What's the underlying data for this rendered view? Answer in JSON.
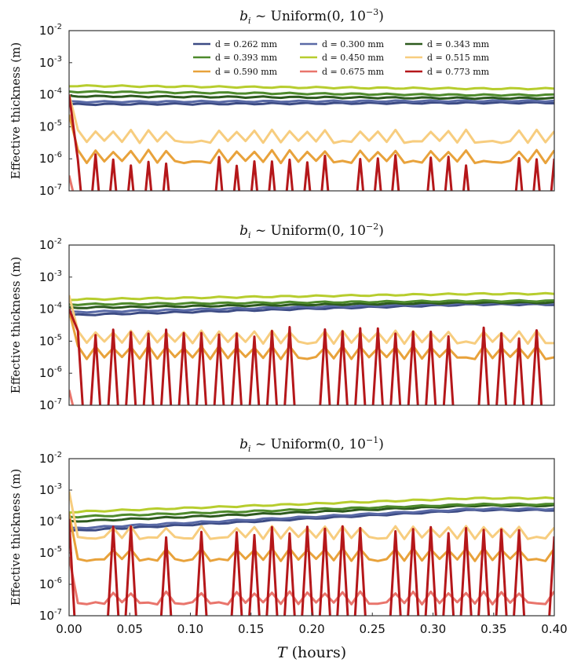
{
  "chart_data": [
    {
      "type": "line",
      "title": "b_i ~ Uniform(0, 10^-3)",
      "title_parts": {
        "var": "b",
        "sub": "i",
        "text": " ~ Uniform(0, 10",
        "exp": "−3",
        "close": ")"
      },
      "ylabel": "Effective thickness (m)",
      "yscale": "log",
      "ylim": [
        1e-07,
        0.01
      ],
      "xlim": [
        0.0,
        0.4
      ],
      "ytick_labels": [
        {
          "base": "10",
          "exp": "-2"
        },
        {
          "base": "10",
          "exp": "-3"
        },
        {
          "base": "10",
          "exp": "-4"
        },
        {
          "base": "10",
          "exp": "-5"
        },
        {
          "base": "10",
          "exp": "-6"
        },
        {
          "base": "10",
          "exp": "-7"
        }
      ],
      "legend_loc": "top-right",
      "series": [
        {
          "name": "d = 0.262 mm",
          "color": "#3c4b84",
          "start": 5e-05,
          "end": 5.6e-05
        },
        {
          "name": "d = 0.300 mm",
          "color": "#5a6aa6",
          "start": 6e-05,
          "end": 6.4e-05
        },
        {
          "name": "d = 0.343 mm",
          "color": "#2d5a1e",
          "start": 9e-05,
          "end": 7.8e-05
        },
        {
          "name": "d = 0.393 mm",
          "color": "#4e8a2c",
          "start": 0.000125,
          "end": 9.8e-05
        },
        {
          "name": "d = 0.450 mm",
          "color": "#b7cd2e",
          "start": 0.00019,
          "end": 0.000155
        },
        {
          "name": "d = 0.515 mm",
          "color": "#f7cd7f",
          "base": 3.4e-06,
          "end": 2.3e-06
        },
        {
          "name": "d = 0.590 mm",
          "color": "#e8a23b",
          "base": 8e-07,
          "end": 7e-07
        },
        {
          "name": "d = 0.675 mm",
          "color": "#e9756c",
          "base": 1e-08,
          "end": 1e-08
        },
        {
          "name": "d = 0.773 mm",
          "color": "#b5171a",
          "start": 0.0001,
          "peak": 1e-06
        }
      ]
    },
    {
      "type": "line",
      "title": "b_i ~ Uniform(0, 10^-2)",
      "title_parts": {
        "var": "b",
        "sub": "i",
        "text": " ~ Uniform(0, 10",
        "exp": "−2",
        "close": ")"
      },
      "ylabel": "Effective thickness (m)",
      "yscale": "log",
      "ylim": [
        1e-07,
        0.01
      ],
      "xlim": [
        0.0,
        0.4
      ],
      "ytick_labels": [
        {
          "base": "10",
          "exp": "-2"
        },
        {
          "base": "10",
          "exp": "-3"
        },
        {
          "base": "10",
          "exp": "-4"
        },
        {
          "base": "10",
          "exp": "-5"
        },
        {
          "base": "10",
          "exp": "-6"
        },
        {
          "base": "10",
          "exp": "-7"
        }
      ],
      "series": [
        {
          "name": "d = 0.262 mm",
          "color": "#3c4b84",
          "start": 6.5e-05,
          "end": 0.00014
        },
        {
          "name": "d = 0.300 mm",
          "color": "#5a6aa6",
          "start": 8e-05,
          "end": 0.00015
        },
        {
          "name": "d = 0.343 mm",
          "color": "#2d5a1e",
          "start": 0.00011,
          "end": 0.00016
        },
        {
          "name": "d = 0.393 mm",
          "color": "#4e8a2c",
          "start": 0.00014,
          "end": 0.00018
        },
        {
          "name": "d = 0.450 mm",
          "color": "#b7cd2e",
          "start": 0.0002,
          "end": 0.0003
        },
        {
          "name": "d = 0.515 mm",
          "color": "#f7cd7f",
          "base": 9e-06,
          "end": 1e-05
        },
        {
          "name": "d = 0.590 mm",
          "color": "#e8a23b",
          "base": 3e-06,
          "end": 2.8e-06
        },
        {
          "name": "d = 0.675 mm",
          "color": "#e9756c",
          "base": 1e-08,
          "end": 1e-08
        },
        {
          "name": "d = 0.773 mm",
          "color": "#b5171a",
          "start": 0.0001,
          "peak": 2e-05
        }
      ]
    },
    {
      "type": "line",
      "title": "b_i ~ Uniform(0, 10^-1)",
      "title_parts": {
        "var": "b",
        "sub": "i",
        "text": " ~ Uniform(0, 10",
        "exp": "−1",
        "close": ")"
      },
      "ylabel": "Effective thickness (m)",
      "xlabel": "T (hours)",
      "xlabel_parts": {
        "var": "T",
        "text": " (hours)"
      },
      "yscale": "log",
      "ylim": [
        1e-07,
        0.01
      ],
      "xlim": [
        0.0,
        0.4
      ],
      "xticks": [
        "0.00",
        "0.05",
        "0.10",
        "0.15",
        "0.20",
        "0.25",
        "0.30",
        "0.35",
        "0.40"
      ],
      "ytick_labels": [
        {
          "base": "10",
          "exp": "-2"
        },
        {
          "base": "10",
          "exp": "-3"
        },
        {
          "base": "10",
          "exp": "-4"
        },
        {
          "base": "10",
          "exp": "-5"
        },
        {
          "base": "10",
          "exp": "-6"
        },
        {
          "base": "10",
          "exp": "-7"
        }
      ],
      "series": [
        {
          "name": "d = 0.262 mm",
          "color": "#3c4b84",
          "start": 5e-05,
          "end": 0.00023
        },
        {
          "name": "d = 0.300 mm",
          "color": "#5a6aa6",
          "start": 6e-05,
          "end": 0.00025
        },
        {
          "name": "d = 0.343 mm",
          "color": "#2d5a1e",
          "start": 0.0001,
          "end": 0.00032
        },
        {
          "name": "d = 0.393 mm",
          "color": "#4e8a2c",
          "start": 0.00014,
          "end": 0.00035
        },
        {
          "name": "d = 0.450 mm",
          "color": "#b7cd2e",
          "start": 0.0002,
          "end": 0.00055
        },
        {
          "name": "d = 0.515 mm",
          "color": "#f7cd7f",
          "base": 3e-05,
          "end": 3e-05
        },
        {
          "name": "d = 0.590 mm",
          "color": "#e8a23b",
          "base": 6e-06,
          "end": 6e-06
        },
        {
          "name": "d = 0.675 mm",
          "color": "#e9756c",
          "base": 2.5e-07,
          "end": 2.5e-07
        },
        {
          "name": "d = 0.773 mm",
          "color": "#b5171a",
          "start": 0.00012,
          "peak": 5e-05
        }
      ]
    }
  ]
}
